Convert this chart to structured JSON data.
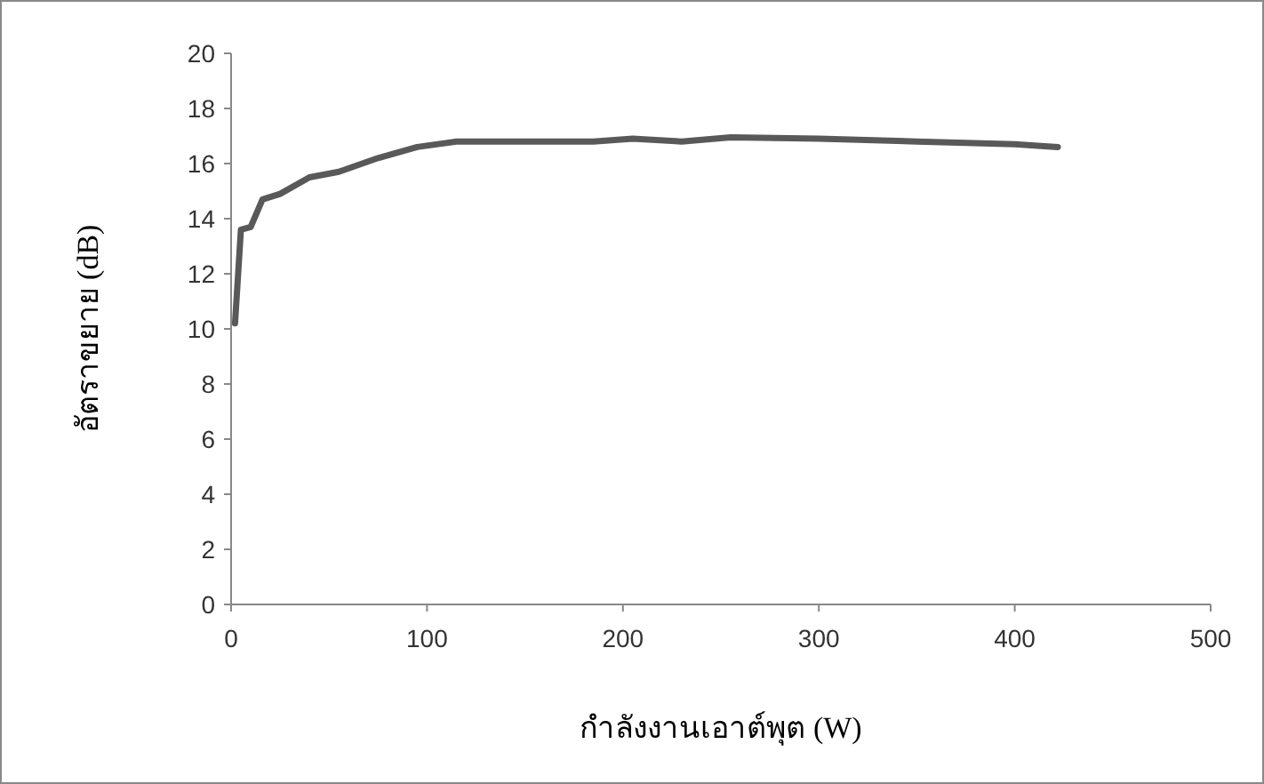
{
  "chart_data": {
    "type": "line",
    "xlabel": "กำลังงานเอาต์พุต (W)",
    "ylabel": "อัตราขยาย (dB)",
    "x": [
      2,
      5,
      10,
      16,
      25,
      40,
      55,
      75,
      95,
      115,
      150,
      185,
      205,
      230,
      255,
      300,
      350,
      400,
      422
    ],
    "series": [
      {
        "color": "#595959",
        "values": [
          10.2,
          13.6,
          13.7,
          14.7,
          14.9,
          15.5,
          15.7,
          16.2,
          16.6,
          16.8,
          16.8,
          16.8,
          16.9,
          16.8,
          16.95,
          16.9,
          16.8,
          16.7,
          16.6
        ]
      }
    ],
    "xlim": [
      0,
      500
    ],
    "ylim": [
      0,
      20
    ],
    "xticks": [
      0,
      100,
      200,
      300,
      400,
      500
    ],
    "yticks": [
      0,
      2,
      4,
      6,
      8,
      10,
      12,
      14,
      16,
      18,
      20
    ],
    "grid": false,
    "marker": "none",
    "line_style": "solid"
  }
}
